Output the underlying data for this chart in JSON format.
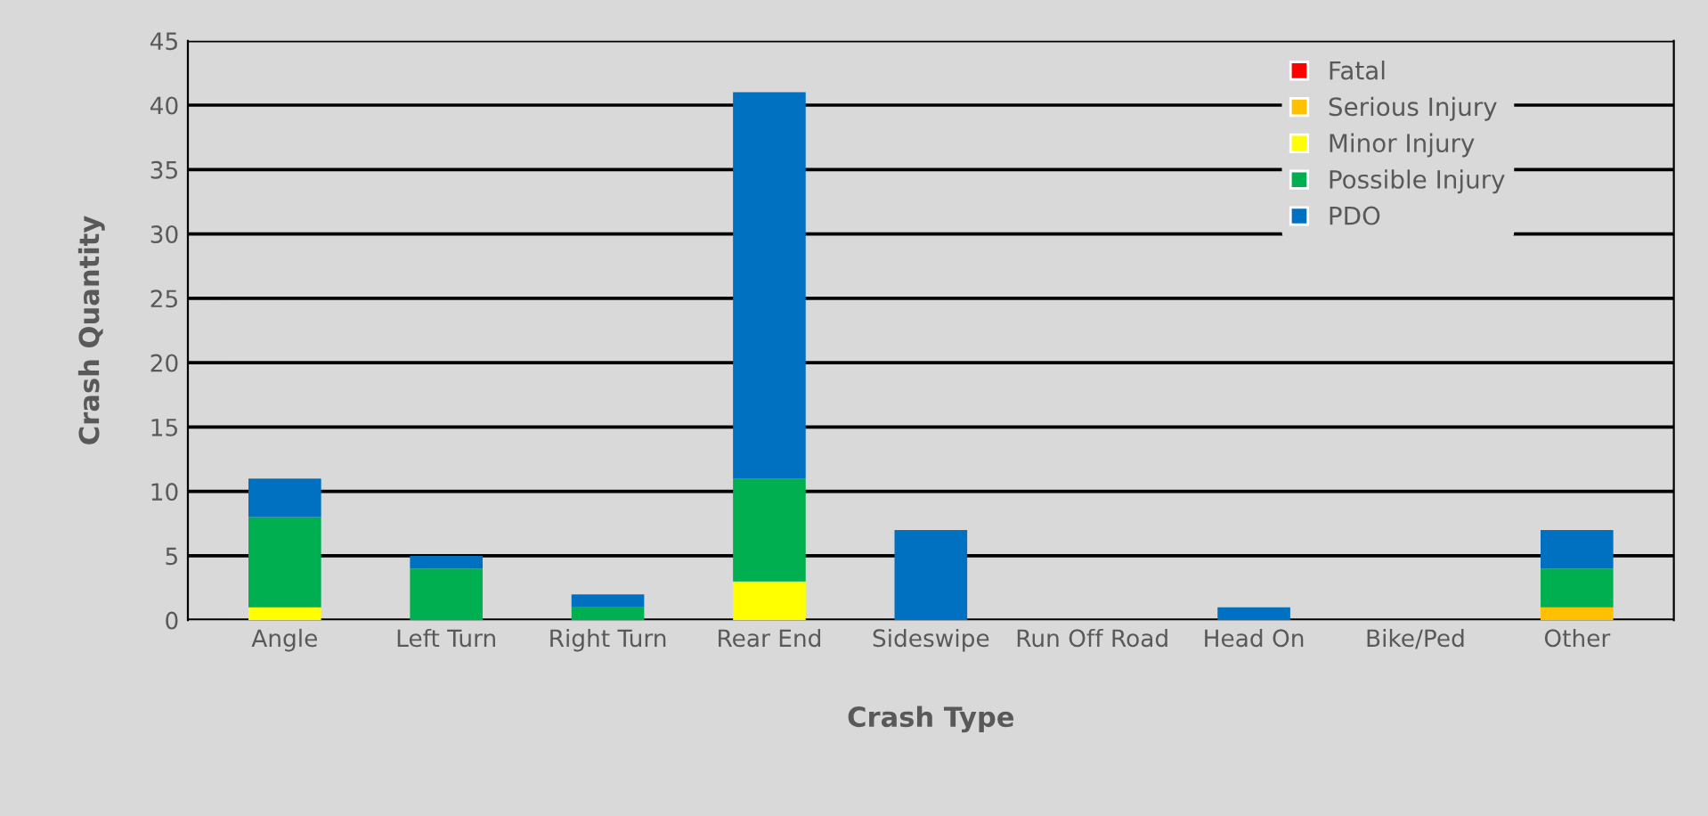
{
  "chart_data": {
    "type": "bar",
    "stacked": true,
    "xlabel": "Crash Type",
    "ylabel": "Crash Quantity",
    "categories": [
      "Angle",
      "Left Turn",
      "Right Turn",
      "Rear End",
      "Sideswipe",
      "Run Off Road",
      "Head On",
      "Bike/Ped",
      "Other"
    ],
    "series": [
      {
        "name": "Fatal",
        "color": "#ff0000",
        "values": [
          0,
          0,
          0,
          0,
          0,
          0,
          0,
          0,
          0
        ]
      },
      {
        "name": "Serious Injury",
        "color": "#ffc000",
        "values": [
          0,
          0,
          0,
          0,
          0,
          0,
          0,
          0,
          1
        ]
      },
      {
        "name": "Minor Injury",
        "color": "#ffff00",
        "values": [
          1,
          0,
          0,
          3,
          0,
          0,
          0,
          0,
          0
        ]
      },
      {
        "name": "Possible Injury",
        "color": "#00b050",
        "values": [
          7,
          4,
          1,
          8,
          0,
          0,
          0,
          0,
          3
        ]
      },
      {
        "name": "PDO",
        "color": "#0070c0",
        "values": [
          3,
          1,
          1,
          30,
          7,
          0,
          1,
          0,
          3
        ]
      }
    ],
    "ylim": [
      0,
      45
    ],
    "yticks": [
      0,
      5,
      10,
      15,
      20,
      25,
      30,
      35,
      40,
      45
    ],
    "grid": "y",
    "legend": "top right"
  }
}
